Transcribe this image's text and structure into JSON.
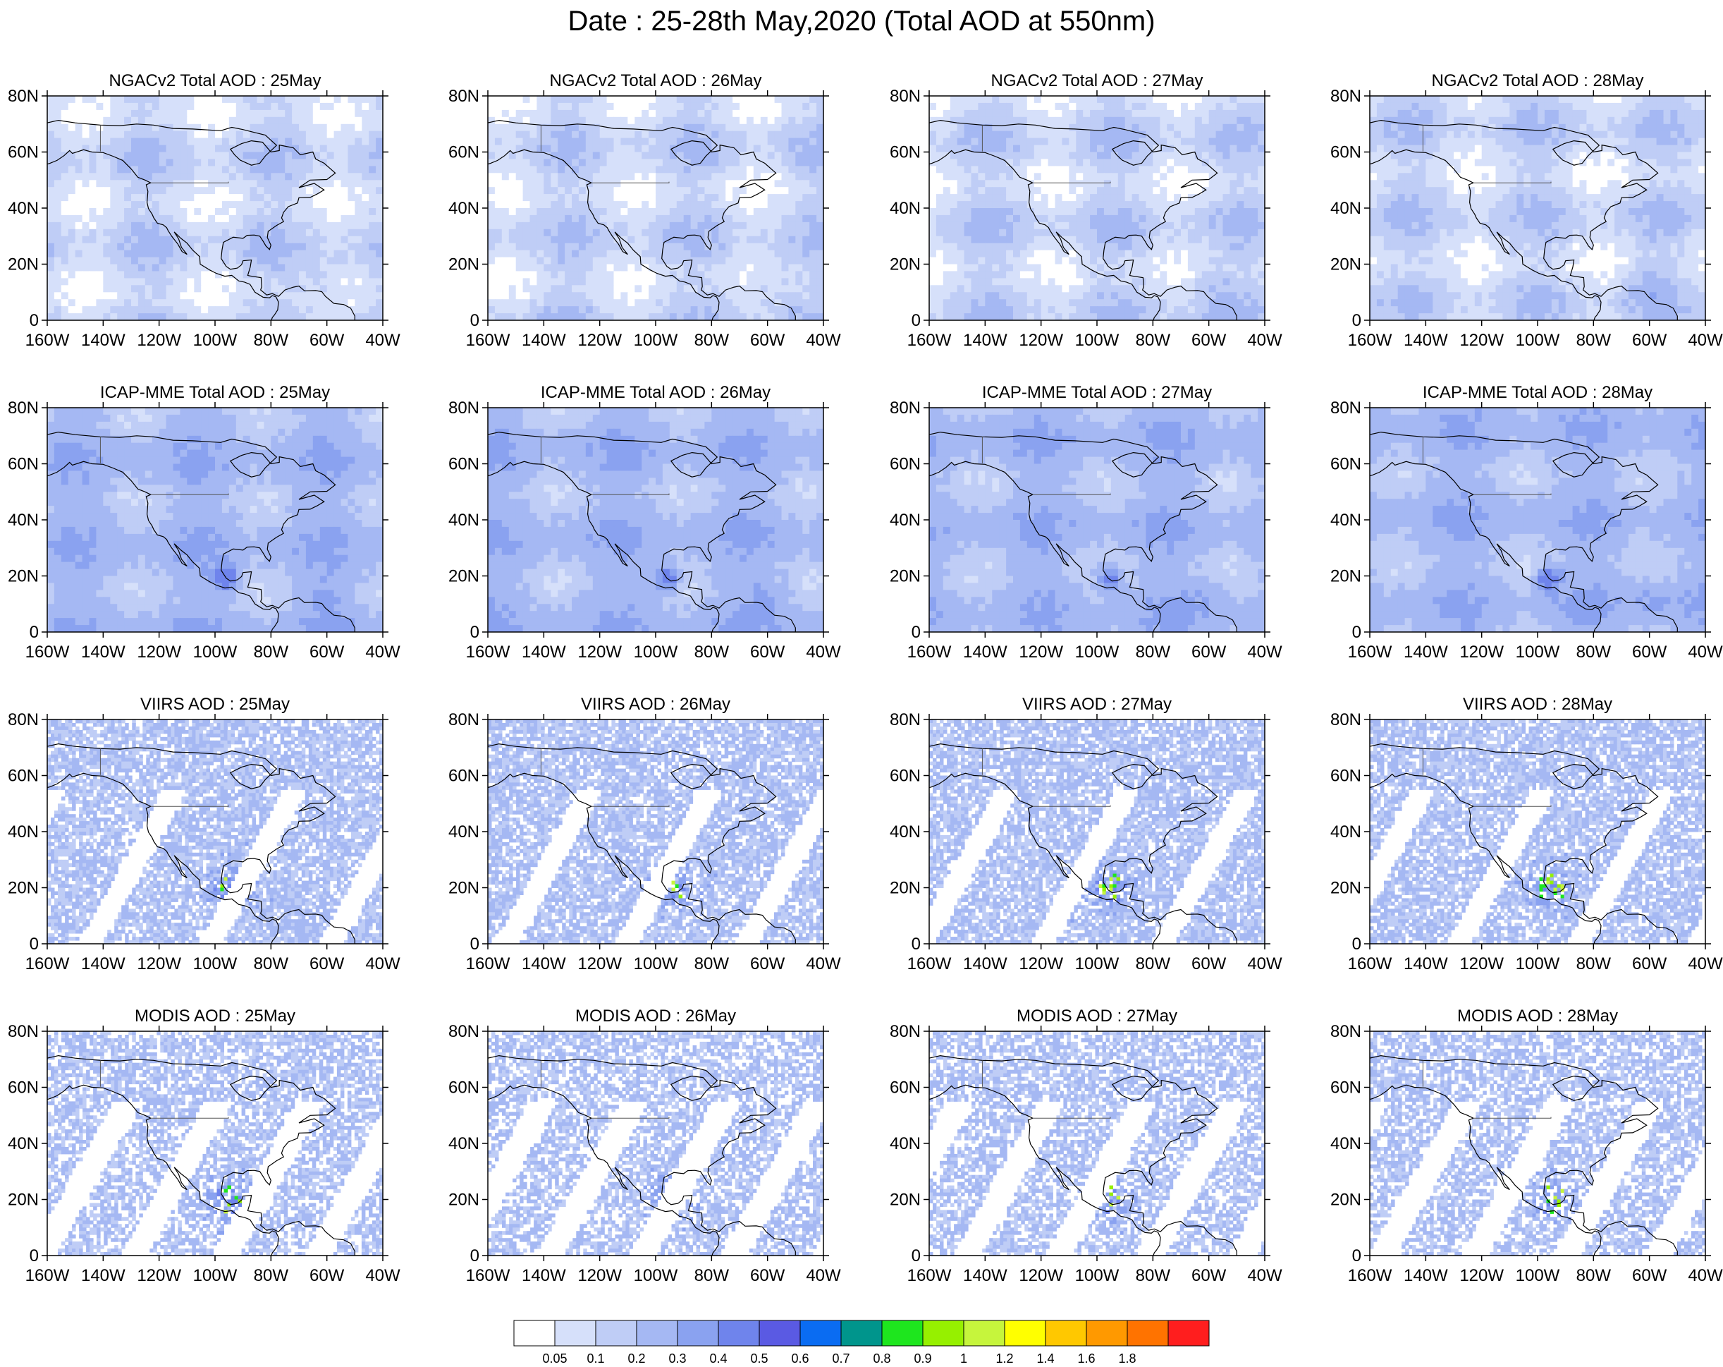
{
  "title": "Date : 25-28th May,2020 (Total AOD at 550nm)",
  "panel_titles": [
    [
      "NGACv2 Total AOD : 25May",
      "NGACv2 Total AOD : 26May",
      "NGACv2 Total AOD : 27May",
      "NGACv2 Total AOD : 28May"
    ],
    [
      "ICAP-MME Total AOD : 25May",
      "ICAP-MME Total AOD : 26May",
      "ICAP-MME Total AOD : 27May",
      "ICAP-MME Total AOD : 28May"
    ],
    [
      "VIIRS AOD : 25May",
      "VIIRS AOD : 26May",
      "VIIRS AOD : 27May",
      "VIIRS AOD : 28May"
    ],
    [
      "MODIS AOD : 25May",
      "MODIS AOD : 26May",
      "MODIS AOD : 27May",
      "MODIS AOD : 28May"
    ]
  ],
  "map": {
    "lat_ticks": [
      "80N",
      "60N",
      "40N",
      "20N",
      "0"
    ],
    "lon_ticks": [
      "160W",
      "140W",
      "120W",
      "100W",
      "80W",
      "60W",
      "40W"
    ],
    "lat_range": [
      0,
      80
    ],
    "lon_range": [
      -160,
      -40
    ]
  },
  "colorbar": {
    "labels": [
      "0.05",
      "0.1",
      "0.2",
      "0.3",
      "0.4",
      "0.5",
      "0.6",
      "0.7",
      "0.8",
      "0.9",
      "1",
      "1.2",
      "1.4",
      "1.6",
      "1.8"
    ],
    "colors": [
      "#ffffff",
      "#d6e0fa",
      "#bfcdf6",
      "#a5b8f3",
      "#8aa2f0",
      "#6f84ec",
      "#5a5ae3",
      "#0a6cf2",
      "#00958c",
      "#1ee61e",
      "#96f000",
      "#c6f53c",
      "#ffff00",
      "#ffc800",
      "#ff9900",
      "#ff7300",
      "#ff1e1e"
    ]
  },
  "colors": {
    "coast": "#000000",
    "border": "#555555"
  }
}
